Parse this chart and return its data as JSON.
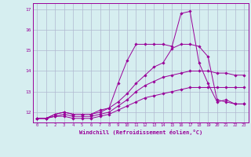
{
  "x": [
    0,
    1,
    2,
    3,
    4,
    5,
    6,
    7,
    8,
    9,
    10,
    11,
    12,
    13,
    14,
    15,
    16,
    17,
    18,
    19,
    20,
    21,
    22,
    23
  ],
  "line1": [
    11.7,
    11.7,
    11.8,
    11.8,
    11.7,
    11.7,
    11.7,
    11.8,
    11.9,
    12.1,
    12.3,
    12.5,
    12.7,
    12.8,
    12.9,
    13.0,
    13.1,
    13.2,
    13.2,
    13.2,
    13.2,
    13.2,
    13.2,
    13.2
  ],
  "line2": [
    11.7,
    11.7,
    11.8,
    11.9,
    11.8,
    11.8,
    11.8,
    11.9,
    12.0,
    12.3,
    12.6,
    13.0,
    13.3,
    13.5,
    13.7,
    13.8,
    13.9,
    14.0,
    14.0,
    14.0,
    13.9,
    13.9,
    13.8,
    13.8
  ],
  "line3": [
    11.7,
    11.7,
    11.9,
    12.0,
    11.9,
    11.9,
    11.9,
    12.0,
    12.2,
    12.5,
    12.9,
    13.4,
    13.8,
    14.2,
    14.4,
    15.1,
    15.3,
    15.3,
    15.2,
    14.7,
    12.6,
    12.5,
    12.4,
    12.4
  ],
  "line4": [
    11.7,
    11.7,
    11.9,
    12.0,
    11.9,
    11.9,
    11.9,
    12.1,
    12.2,
    13.4,
    14.5,
    15.3,
    15.3,
    15.3,
    15.3,
    15.2,
    16.8,
    16.9,
    14.4,
    13.4,
    12.5,
    12.6,
    12.4,
    12.4
  ],
  "bg_color": "#d6eef0",
  "line_color": "#990099",
  "grid_color": "#b0b8d0",
  "xlabel": "Windchill (Refroidissement éolien,°C)",
  "ylim_min": 11.5,
  "ylim_max": 17.3,
  "xlim_min": -0.5,
  "xlim_max": 23.5,
  "yticks": [
    12,
    13,
    14,
    15,
    16,
    17
  ],
  "xticks": [
    0,
    1,
    2,
    3,
    4,
    5,
    6,
    7,
    8,
    9,
    10,
    11,
    12,
    13,
    14,
    15,
    16,
    17,
    18,
    19,
    20,
    21,
    22,
    23
  ]
}
